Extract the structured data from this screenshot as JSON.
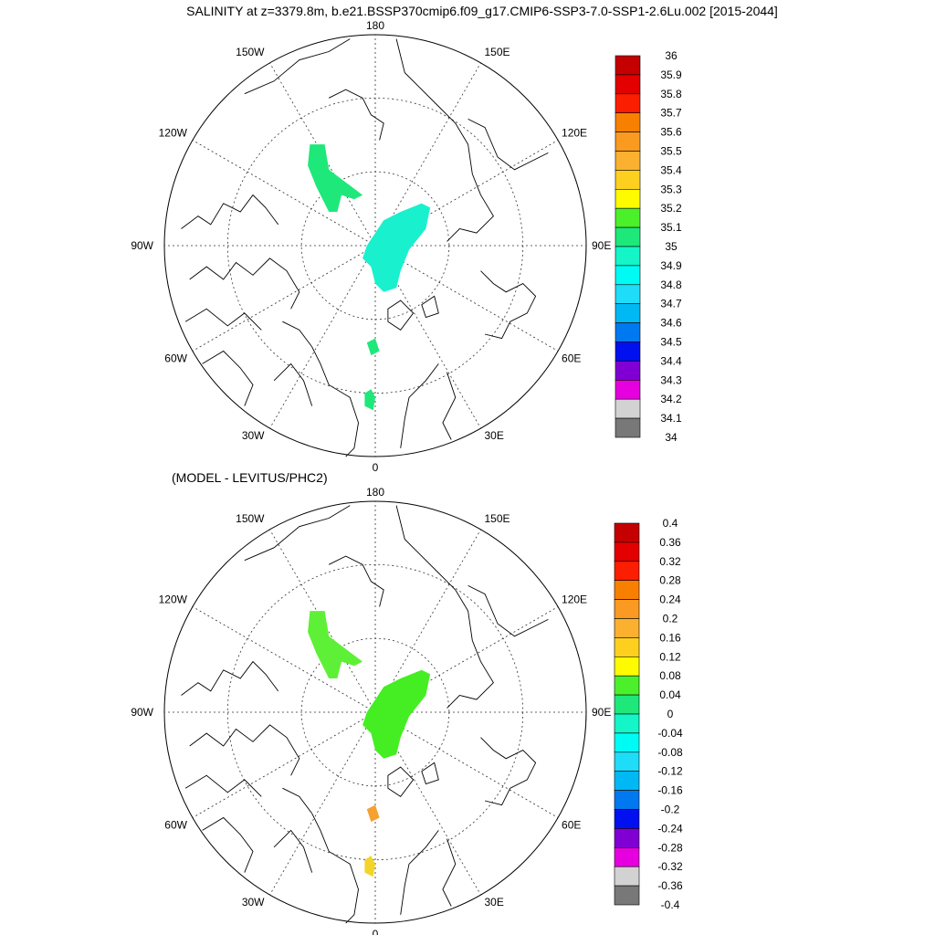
{
  "title": "SALINITY at z=3379.8m, b.e21.BSSP370cmip6.f09_g17.CMIP6-SSP3-7.0-SSP1-2.6Lu.002 [2015-2044]",
  "diff_title": "(MODEL - LEVITUS/PHC2)",
  "longitude_labels": {
    "top": "180",
    "bottom": "0",
    "left": "90W",
    "right": "90E",
    "upper_left_1": "150W",
    "upper_left_2": "120W",
    "lower_left_1": "60W",
    "lower_left_2": "30W",
    "upper_right_1": "150E",
    "upper_right_2": "120E",
    "lower_right_1": "60E",
    "lower_right_2": "30E"
  },
  "colors": {
    "land_outline": "#000000",
    "grid": "#333333",
    "abs_blob_color": "#1ee87a",
    "abs_cyan_blob": "#19f0cd",
    "diff_green": "#44ee22",
    "diff_light_green": "#5ef036",
    "diff_orange": "#f5a030",
    "diff_yellow": "#f2d52a"
  },
  "chart_data": [
    {
      "type": "heatmap",
      "projection": "north polar stereographic",
      "title": "SALINITY at z=3379.8m, b.e21.BSSP370cmip6.f09_g17.CMIP6-SSP3-7.0-SSP1-2.6Lu.002 [2015-2044]",
      "colorbar": {
        "labels": [
          "36",
          "35.9",
          "35.8",
          "35.7",
          "35.6",
          "35.5",
          "35.4",
          "35.3",
          "35.2",
          "35.1",
          "35",
          "34.9",
          "34.8",
          "34.7",
          "34.6",
          "34.5",
          "34.4",
          "34.3",
          "34.2",
          "34.1",
          "34"
        ],
        "colors": [
          "#c40000",
          "#e20000",
          "#fc1e00",
          "#f88000",
          "#fa9a20",
          "#fbb030",
          "#fdd020",
          "#fefa00",
          "#4cf02a",
          "#1ee87a",
          "#14f5c8",
          "#00fbf5",
          "#1fdcf8",
          "#00b8f4",
          "#0078f0",
          "#0010ee",
          "#8000d4",
          "#e600e0",
          "#d2d2d2",
          "#787878"
        ]
      },
      "regions": [
        {
          "name": "Beaufort/Canada Basin patch",
          "value_range": "35-35.1"
        },
        {
          "name": "Eurasian Basin patch",
          "value_range": "34.9-35"
        },
        {
          "name": "Fram Strait patch",
          "value_range": "35-35.1"
        },
        {
          "name": "Greenland Sea patch",
          "value_range": "35-35.1"
        }
      ]
    },
    {
      "type": "heatmap",
      "projection": "north polar stereographic",
      "title": "(MODEL - LEVITUS/PHC2)",
      "colorbar": {
        "labels": [
          "0.4",
          "0.36",
          "0.32",
          "0.28",
          "0.24",
          "0.2",
          "0.16",
          "0.12",
          "0.08",
          "0.04",
          "0",
          "-0.04",
          "-0.08",
          "-0.12",
          "-0.16",
          "-0.2",
          "-0.24",
          "-0.28",
          "-0.32",
          "-0.36",
          "-0.4"
        ],
        "colors": [
          "#c40000",
          "#e20000",
          "#fc1e00",
          "#f88000",
          "#fa9a20",
          "#fbb030",
          "#fdd020",
          "#fefa00",
          "#4cf02a",
          "#1ee87a",
          "#14f5c8",
          "#00fbf5",
          "#1fdcf8",
          "#00b8f4",
          "#0078f0",
          "#0010ee",
          "#8000d4",
          "#e600e0",
          "#d2d2d2",
          "#787878"
        ]
      },
      "regions": [
        {
          "name": "Beaufort/Canada Basin patch",
          "value_range": "0.04-0.08"
        },
        {
          "name": "Eurasian Basin patch",
          "value_range": "0.04-0.08"
        },
        {
          "name": "Fram Strait patch",
          "value_range": "0.2-0.24"
        },
        {
          "name": "Greenland Sea patch",
          "value_range": "0.12-0.16"
        }
      ]
    }
  ]
}
